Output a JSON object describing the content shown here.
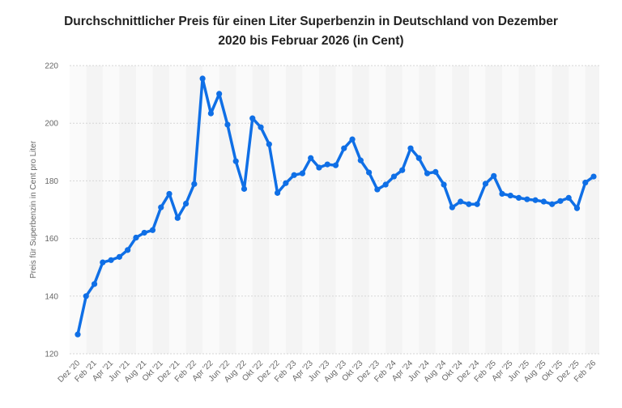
{
  "chart_data": {
    "type": "line",
    "title_line1": "Durchschnittlicher Preis für einen Liter Superbenzin in Deutschland von Dezember",
    "title_line2": "2020 bis Februar 2026 (in Cent)",
    "xlabel": "",
    "ylabel": "Preis für Superbenzin in Cent pro Liter",
    "ylim": [
      120,
      220
    ],
    "yticks": [
      "120",
      "140",
      "160",
      "180",
      "200",
      "220"
    ],
    "grid": true,
    "color": "#0f6fe6",
    "x_tick_labels": [
      "Dez '20",
      "Feb '21",
      "Apr '21",
      "Jun '21",
      "Aug '21",
      "Okt '21",
      "Dez '21",
      "Feb '22",
      "Apr '22",
      "Jun '22",
      "Aug '22",
      "Okt '22",
      "Dez '22",
      "Feb '23",
      "Apr '23",
      "Jun '23",
      "Aug '23",
      "Okt '23",
      "Dez '23",
      "Feb '24",
      "Apr '24",
      "Jun '24",
      "Aug '24",
      "Okt '24",
      "Dez '24",
      "Feb '25",
      "Apr '25",
      "Jun '25",
      "Aug '25",
      "Okt '25",
      "Dez '25",
      "Feb '26"
    ],
    "x": [
      "Dez 2020",
      "Jan 2021",
      "Feb 2021",
      "Mär 2021",
      "Apr 2021",
      "Mai 2021",
      "Jun 2021",
      "Jul 2021",
      "Aug 2021",
      "Sep 2021",
      "Okt 2021",
      "Nov 2021",
      "Dez 2021",
      "Jan 2022",
      "Feb 2022",
      "Mär 2022",
      "Apr 2022",
      "Mai 2022",
      "Jun 2022",
      "Jul 2022",
      "Aug 2022",
      "Sep 2022",
      "Okt 2022",
      "Nov 2022",
      "Dez 2022",
      "Jan 2023",
      "Feb 2023",
      "Mär 2023",
      "Apr 2023",
      "Mai 2023",
      "Jun 2023",
      "Jul 2023",
      "Aug 2023",
      "Sep 2023",
      "Okt 2023",
      "Nov 2023",
      "Dez 2023",
      "Jan 2024",
      "Feb 2024",
      "Mär 2024",
      "Apr 2024",
      "Mai 2024",
      "Jun 2024",
      "Jul 2024",
      "Aug 2024",
      "Sep 2024",
      "Okt 2024",
      "Nov 2024",
      "Dez 2024",
      "Jan 2025",
      "Feb 2025",
      "Mär 2025",
      "Apr 2025",
      "Mai 2025",
      "Jun 2025",
      "Jul 2025",
      "Aug 2025",
      "Sep 2025",
      "Okt 2025",
      "Nov 2025",
      "Dez 2025",
      "Jan 2026",
      "Feb 2026"
    ],
    "values": [
      126.7,
      140,
      144.2,
      151.7,
      152.5,
      153.6,
      156,
      160.3,
      162,
      162.9,
      170.8,
      175.5,
      167.1,
      172.1,
      178.9,
      215.5,
      203.4,
      210.2,
      199.5,
      186.8,
      177.2,
      201.7,
      198.6,
      192.7,
      175.8,
      179.2,
      182,
      182.6,
      187.9,
      184.6,
      185.7,
      185.4,
      191.3,
      194.4,
      187.1,
      182.9,
      177,
      178.7,
      181.5,
      183.7,
      191.3,
      187.9,
      182.6,
      183.1,
      178.7,
      170.8,
      172.8,
      171.9,
      171.9,
      179,
      181.7,
      175.5,
      174.9,
      174.1,
      173.6,
      173.3,
      172.8,
      171.9,
      173,
      174.1,
      170.5,
      179.4,
      181.5
    ]
  }
}
